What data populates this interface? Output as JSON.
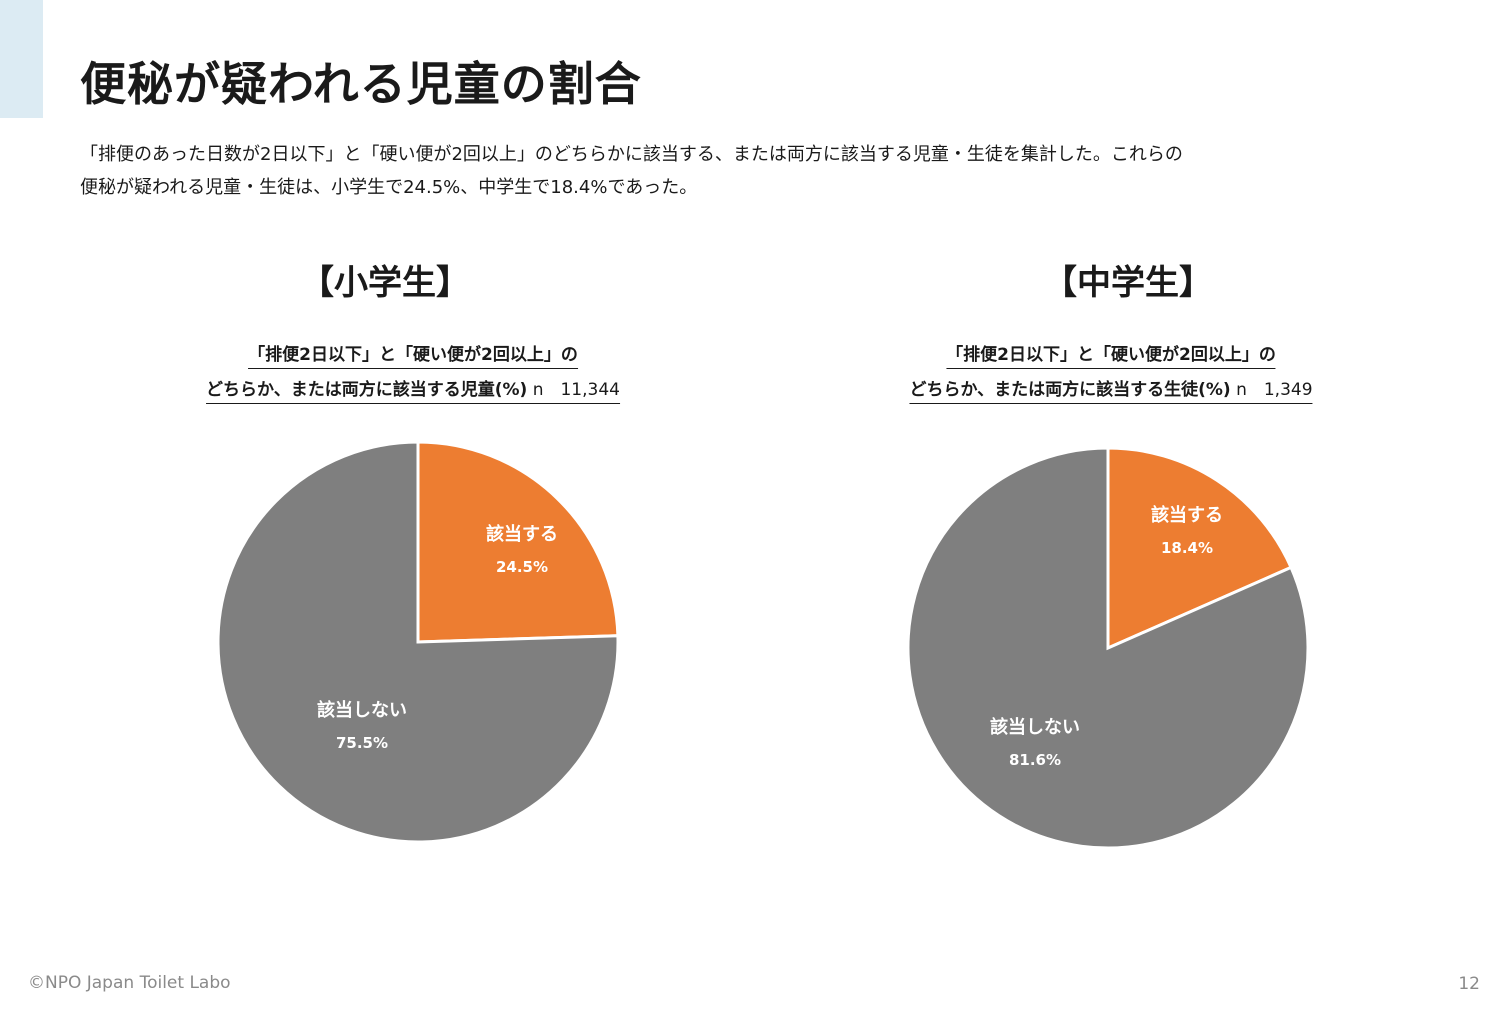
{
  "page": {
    "title": "便秘が疑われる児童の割合",
    "description": [
      "「排便のあった日数が2日以下」と「硬い便が2回以上」のどちらかに該当する、または両方に該当する児童・生徒を集計した。これらの",
      "便秘が疑われる児童・生徒は、小学生で24.5%、中学生で18.4%であった。"
    ],
    "footer": "©NPO Japan Toilet Labo",
    "page_number": "12"
  },
  "panels": [
    {
      "heading": "【小学生】",
      "caption_line1": "「排便2日以下」と「硬い便が2回以上」の",
      "caption_line2": "どちらか、または両方に該当する児童(%)",
      "n_label": "n　11,344"
    },
    {
      "heading": "【中学生】",
      "caption_line1": "「排便2日以下」と「硬い便が2回以上」の",
      "caption_line2": "どちらか、または両方に該当する生徒(%)",
      "n_label": "n　1,349"
    }
  ],
  "colors": {
    "applicable": "#ed7d31",
    "not_applicable": "#7f7f7f",
    "accent": "#dcebf3"
  },
  "chart_data": [
    {
      "type": "pie",
      "slices": [
        {
          "label": "該当する",
          "value": 24.5,
          "value_label": "24.5%"
        },
        {
          "label": "該当しない",
          "value": 75.5,
          "value_label": "75.5%"
        }
      ]
    },
    {
      "type": "pie",
      "slices": [
        {
          "label": "該当する",
          "value": 18.4,
          "value_label": "18.4%"
        },
        {
          "label": "該当しない",
          "value": 81.6,
          "value_label": "81.6%"
        }
      ]
    }
  ]
}
